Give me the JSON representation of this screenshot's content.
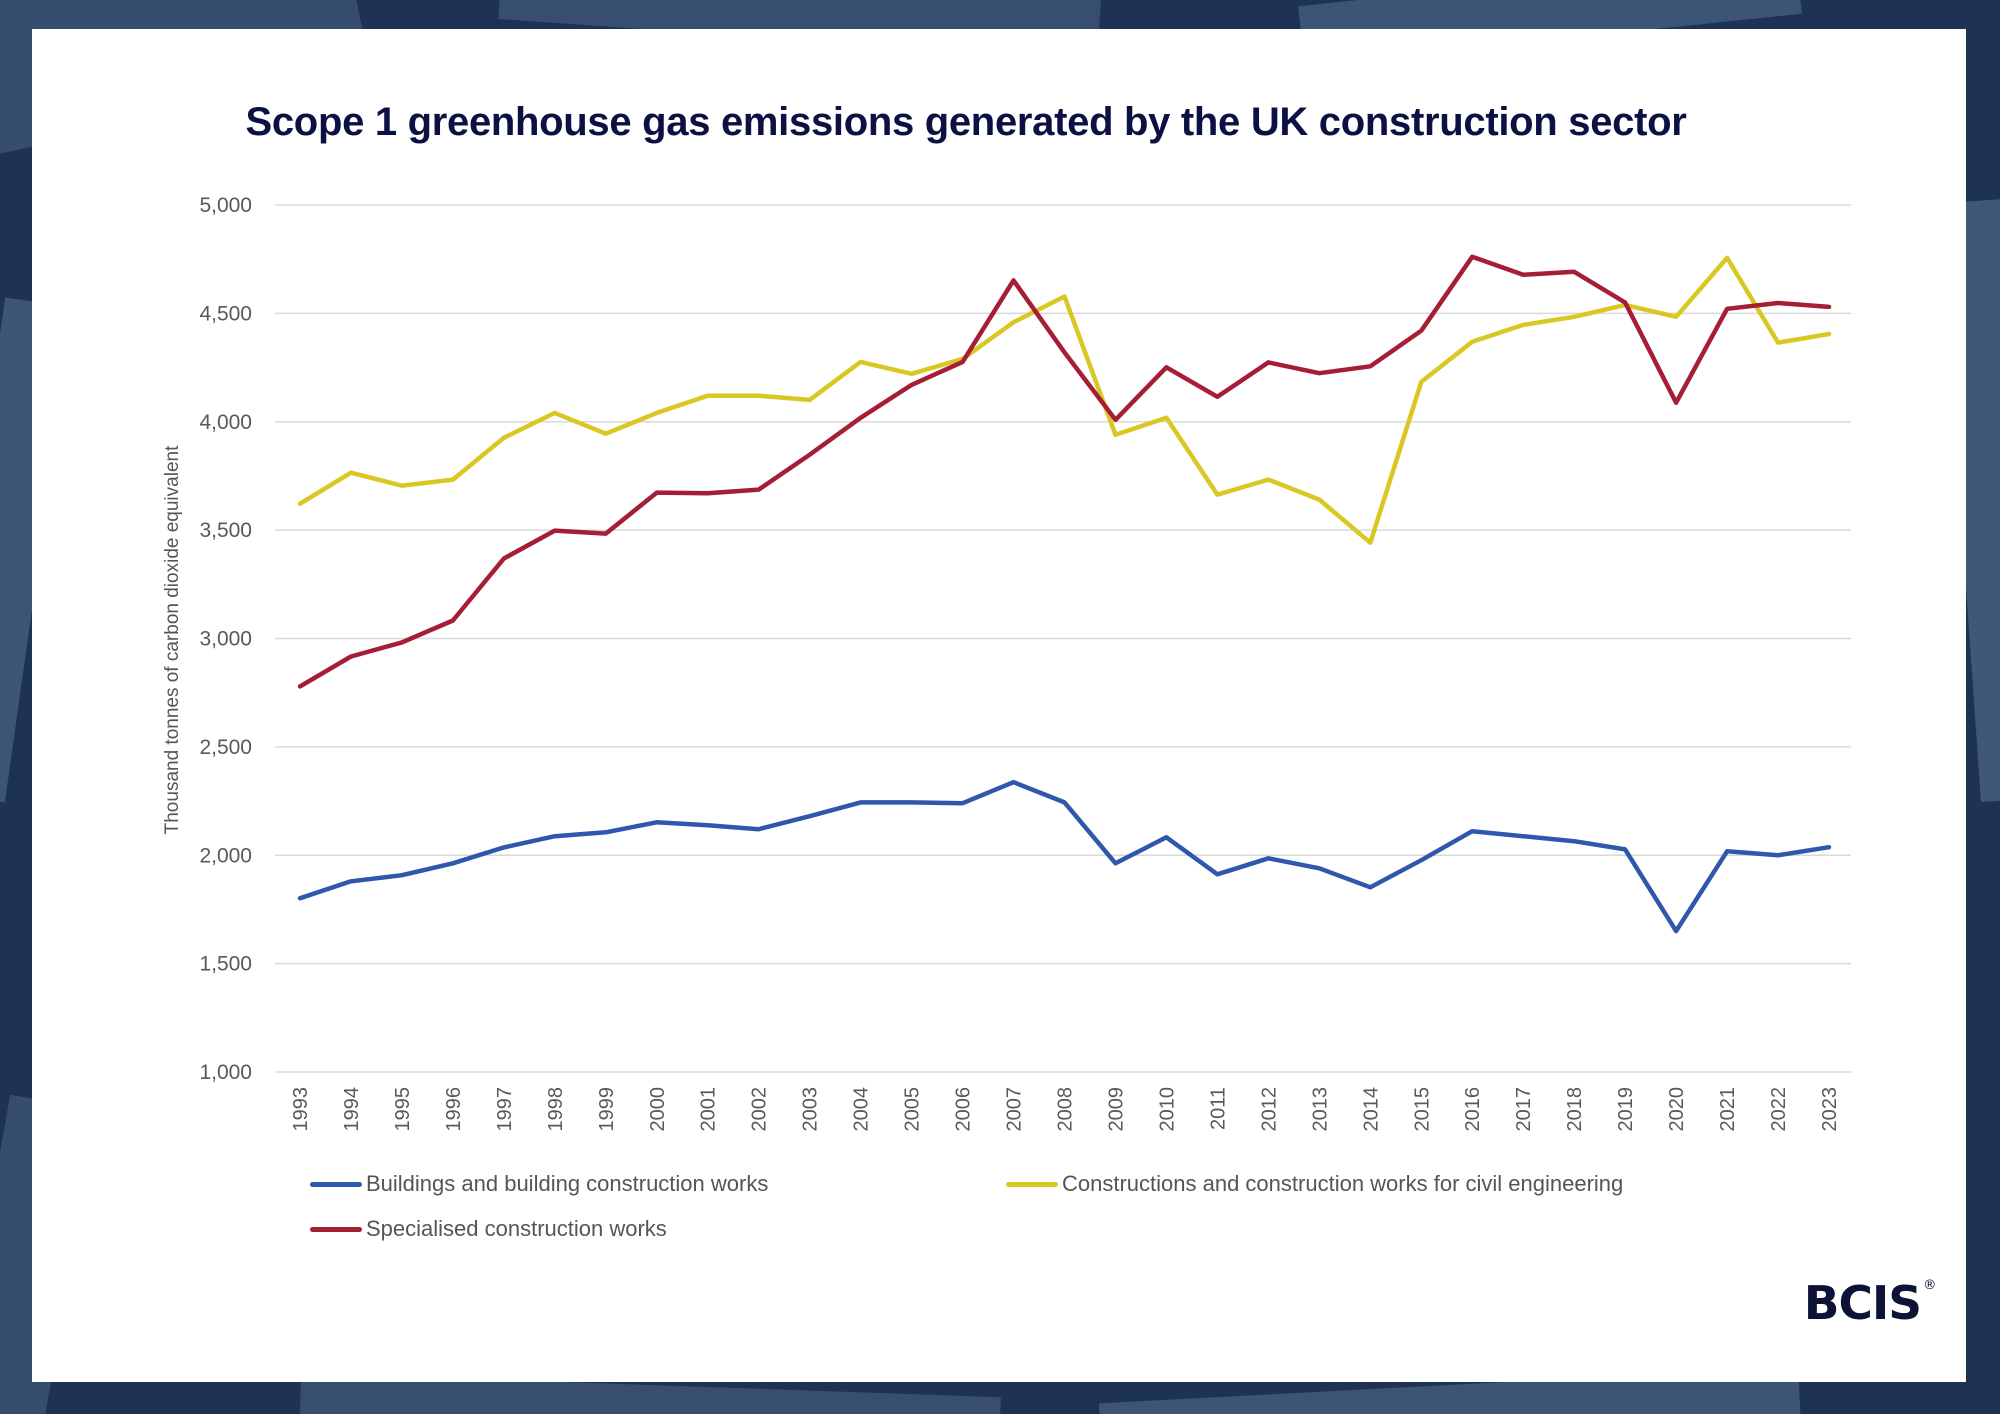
{
  "colors": {
    "buildings": "#2f58ad",
    "civil": "#d9c824",
    "specialised": "#a51e36",
    "gridline": "#d9d9d9",
    "axis_text": "#595959",
    "title": "#0b1142"
  },
  "brand": {
    "name": "BCIS",
    "registered": "®"
  },
  "chart_data": {
    "type": "line",
    "title": "Scope 1 greenhouse gas emissions generated by the UK construction sector",
    "xlabel": "",
    "ylabel": "Thousand tonnes of carbon dioxide equivalent",
    "ylim": [
      1000,
      5000
    ],
    "yticks": [
      1000,
      1500,
      2000,
      2500,
      3000,
      3500,
      4000,
      4500,
      5000
    ],
    "ytick_labels": [
      "1,000",
      "1,500",
      "2,000",
      "2,500",
      "3,000",
      "3,500",
      "4,000",
      "4,500",
      "5,000"
    ],
    "grid": true,
    "legend_position": "bottom",
    "x": [
      "1993",
      "1994",
      "1995",
      "1996",
      "1997",
      "1998",
      "1999",
      "2000",
      "2001",
      "2002",
      "2003",
      "2004",
      "2005",
      "2006",
      "2007",
      "2008",
      "2009",
      "2010",
      "2011",
      "2012",
      "2013",
      "2014",
      "2015",
      "2016",
      "2017",
      "2018",
      "2019",
      "2020",
      "2021",
      "2022",
      "2023"
    ],
    "series": [
      {
        "key": "buildings",
        "name": "Buildings and building construction works",
        "values": [
          1802,
          1880,
          1908,
          1963,
          2036,
          2088,
          2106,
          2152,
          2138,
          2120,
          2180,
          2244,
          2244,
          2240,
          2337,
          2244,
          1963,
          2083,
          1912,
          1986,
          1940,
          1852,
          1977,
          2111,
          2088,
          2065,
          2027,
          1650,
          2018,
          2000,
          2037
        ]
      },
      {
        "key": "civil",
        "name": "Constructions and construction works for civil engineering",
        "values": [
          3622,
          3765,
          3705,
          3733,
          3926,
          4041,
          3945,
          4041,
          4120,
          4120,
          4101,
          4276,
          4221,
          4290,
          4459,
          4578,
          3940,
          4018,
          3664,
          3733,
          3641,
          3442,
          4184,
          4369,
          4447,
          4484,
          4539,
          4484,
          4756,
          4365,
          4405
        ]
      },
      {
        "key": "specialised",
        "name": "Specialised construction works",
        "values": [
          2779,
          2917,
          2982,
          3083,
          3369,
          3498,
          3484,
          3673,
          3670,
          3687,
          3848,
          4018,
          4170,
          4276,
          4652,
          4320,
          4009,
          4251,
          4115,
          4274,
          4224,
          4256,
          4420,
          4761,
          4678,
          4692,
          4550,
          4088,
          4521,
          4548,
          4530
        ]
      }
    ]
  }
}
